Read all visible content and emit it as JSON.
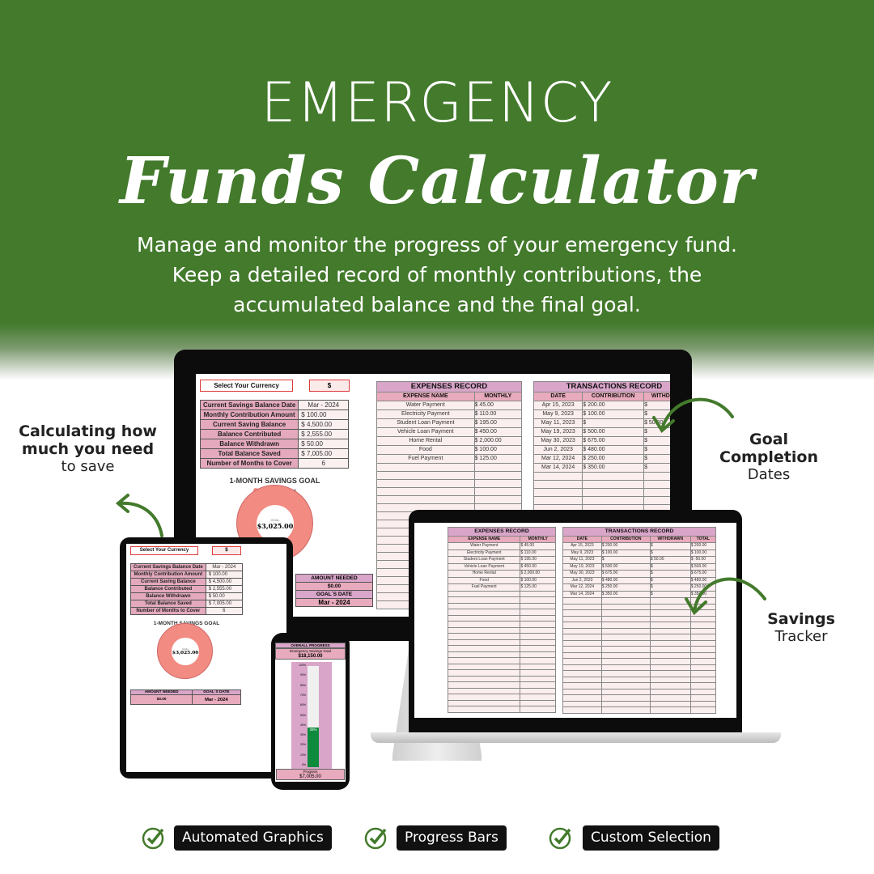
{
  "hero": {
    "title": "EMERGENCY",
    "subtitle": "Funds Calculator",
    "description": [
      "Manage and monitor the progress of your emergency fund.",
      "Keep a detailed record of monthly contributions, the",
      "accumulated balance and the final goal."
    ]
  },
  "callouts": {
    "left": {
      "bold": "Calculating how much you need",
      "normal": "to save"
    },
    "right_top": {
      "bold": "Goal Completion",
      "normal": "Dates"
    },
    "right_bottom": {
      "bold": "Savings",
      "normal": "Tracker"
    }
  },
  "colors": {
    "brand_green": "#437a2c",
    "header_pink": "#e4a9bd",
    "header_purple": "#d9a5c9",
    "donut": "#f28b82",
    "progress_fill": "#0e8a3c"
  },
  "summary": {
    "currency_label": "Select Your Currency",
    "currency_value": "$",
    "rows": [
      {
        "k": "Current Savings Balance Date",
        "v": "Mar - 2024"
      },
      {
        "k": "Monthly Contribution Amount",
        "v": "$ 100.00"
      },
      {
        "k": "Current Saving Balance",
        "v": "$ 4,500.00"
      },
      {
        "k": "Balance Contributed",
        "v": "$ 2,555.00"
      },
      {
        "k": "Balance Withdrawn",
        "v": "$ 50.00"
      },
      {
        "k": "Total Balance Saved",
        "v": "$ 7,005.00"
      },
      {
        "k": "Number of Months to Cover",
        "v": "6"
      }
    ],
    "chart_title": "1-MONTH SAVINGS GOAL",
    "legend": "Amount Saved",
    "goal_label": "GOAL",
    "goal_value": "$3,025.00",
    "amount_needed_label": "AMOUNT NEEDED",
    "amount_needed": "$0.00",
    "goals_date_label": "GOAL´S DATE",
    "goals_date": "Mar - 2024"
  },
  "expenses": {
    "title": "EXPENSES RECORD",
    "cols": [
      "EXPENSE NAME",
      "MONTHLY"
    ],
    "rows": [
      [
        "Water Payment",
        "45.00"
      ],
      [
        "Electricity Payment",
        "110.00"
      ],
      [
        "Student Loan Payment",
        "195.00"
      ],
      [
        "Vehicle Loan Payment",
        "450.00"
      ],
      [
        "Home Rental",
        "2,000.00"
      ],
      [
        "Food",
        "100.00"
      ],
      [
        "Fuel Payment",
        "125.00"
      ]
    ]
  },
  "transactions": {
    "title": "TRANSACTIONS RECORD",
    "cols": [
      "DATE",
      "CONTRIBUTION",
      "WITHDRAWN",
      "TOTAL"
    ],
    "rows": [
      [
        "Apr 15, 2023",
        "200.00",
        "",
        "200.00"
      ],
      [
        "May 9, 2023",
        "100.00",
        "",
        "100.00"
      ],
      [
        "May 11, 2023",
        "",
        "50.00",
        "-50.00"
      ],
      [
        "May 19, 2023",
        "500.00",
        "",
        "500.00"
      ],
      [
        "May 30, 2023",
        "675.00",
        "",
        "675.00"
      ],
      [
        "Jun 2, 2023",
        "480.00",
        "",
        "480.00"
      ],
      [
        "Mar 12, 2024",
        "250.00",
        "",
        "250.00"
      ],
      [
        "Mar 14, 2024",
        "350.00",
        "",
        "350.00"
      ]
    ]
  },
  "progress": {
    "title": "OVERALL PROGRESS",
    "goal_label": "Emergency Savings Goal",
    "goal_value": "$18,150.00",
    "ticks": [
      "100%",
      "90%",
      "80%",
      "70%",
      "60%",
      "50%",
      "40%",
      "30%",
      "20%",
      "10%",
      "0%"
    ],
    "percent": 39,
    "percent_label": "39%",
    "footer_label": "Progress",
    "footer_value": "$7,005.00"
  },
  "features": [
    "Automated Graphics",
    "Progress Bars",
    "Custom Selection"
  ]
}
